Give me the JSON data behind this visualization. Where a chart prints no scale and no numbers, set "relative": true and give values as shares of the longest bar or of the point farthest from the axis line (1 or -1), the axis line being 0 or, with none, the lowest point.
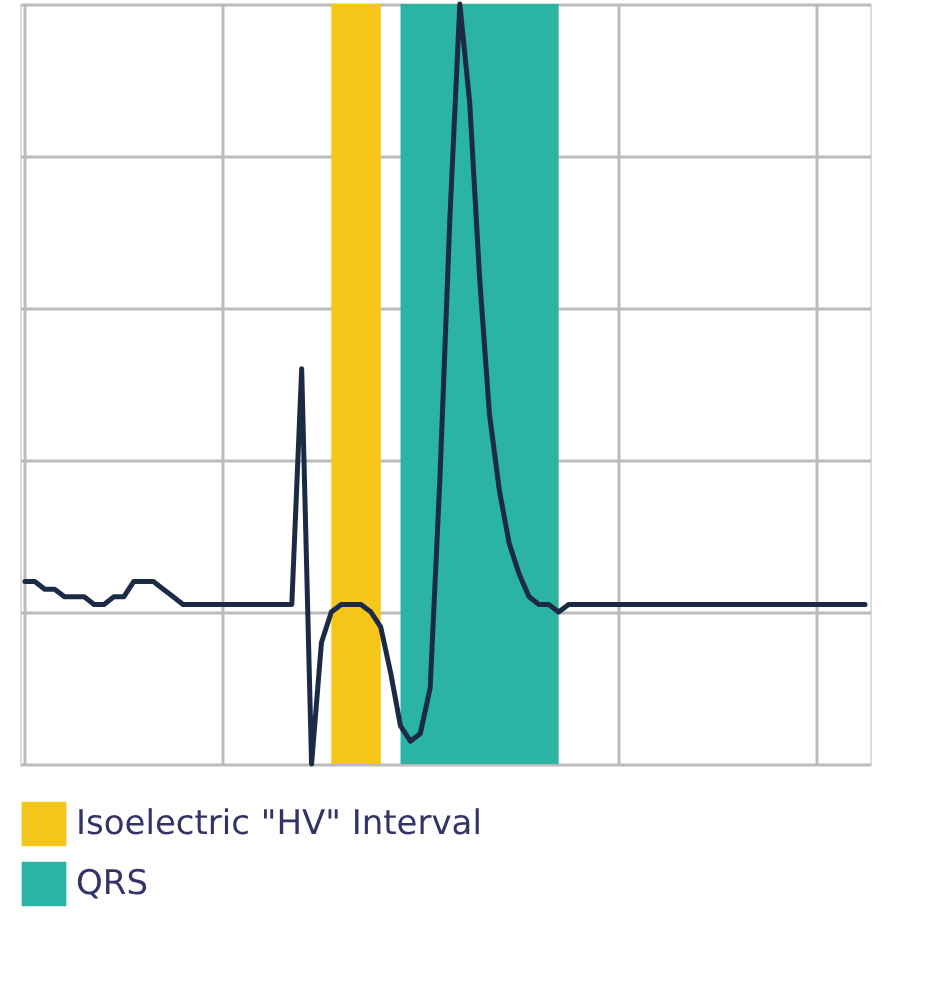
{
  "chart_data": {
    "type": "line",
    "relative": true,
    "tick_labels": false,
    "grid": true,
    "legend": "bottom",
    "marker": "none",
    "line_style": "solid",
    "categories": [
      null,
      null,
      null,
      null,
      null,
      null,
      null,
      null,
      null,
      null,
      null,
      null,
      null,
      null,
      null,
      null,
      null,
      null,
      null,
      null,
      null,
      null,
      null,
      null,
      null,
      null,
      null,
      null,
      null,
      null,
      null,
      null,
      null,
      null,
      null,
      null,
      null,
      null,
      null,
      null,
      null,
      null,
      null,
      null,
      null,
      null,
      null,
      null,
      null,
      null,
      null,
      null,
      null,
      null,
      null,
      null,
      null,
      null,
      null,
      null,
      null,
      null,
      null,
      null,
      null,
      null,
      null,
      null,
      null,
      null,
      null,
      null,
      null,
      null,
      null,
      null,
      null,
      null,
      null,
      null,
      null,
      null,
      null,
      null,
      null,
      null
    ],
    "series": [
      {
        "type": "area",
        "name": "Isoelectric \"HV\" Interval",
        "color": "#f5c518",
        "values": [
          null,
          null,
          null,
          null,
          null,
          null,
          null,
          null,
          null,
          null,
          null,
          null,
          null,
          null,
          null,
          null,
          null,
          null,
          null,
          null,
          null,
          null,
          null,
          null,
          null,
          null,
          null,
          null,
          null,
          null,
          null,
          1,
          1,
          1,
          1,
          1,
          1,
          null,
          null,
          null,
          null,
          null,
          null,
          null,
          null,
          null,
          null,
          null,
          null,
          null,
          null,
          null,
          null,
          null,
          null,
          null,
          null,
          null,
          null,
          null,
          null,
          null,
          null,
          null,
          null,
          null,
          null,
          null,
          null,
          null,
          null,
          null,
          null,
          null,
          null,
          null,
          null,
          null,
          null,
          null,
          null,
          null,
          null,
          null,
          null,
          null
        ]
      },
      {
        "type": "area",
        "name": "QRS",
        "color": "#2bb3a3",
        "values": [
          null,
          null,
          null,
          null,
          null,
          null,
          null,
          null,
          null,
          null,
          null,
          null,
          null,
          null,
          null,
          null,
          null,
          null,
          null,
          null,
          null,
          null,
          null,
          null,
          null,
          null,
          null,
          null,
          null,
          null,
          null,
          null,
          null,
          null,
          null,
          null,
          null,
          null,
          1,
          1,
          1,
          1,
          1,
          1,
          1,
          1,
          1,
          1,
          1,
          1,
          1,
          1,
          1,
          1,
          1,
          null,
          null,
          null,
          null,
          null,
          null,
          null,
          null,
          null,
          null,
          null,
          null,
          null,
          null,
          null,
          null,
          null,
          null,
          null,
          null,
          null,
          null,
          null,
          null,
          null,
          null,
          null,
          null,
          null,
          null,
          null
        ]
      },
      {
        "color": "#1c2b45",
        "values": [
          0.24,
          0.24,
          0.23,
          0.23,
          0.22,
          0.22,
          0.22,
          0.21,
          0.21,
          0.22,
          0.22,
          0.24,
          0.24,
          0.24,
          0.23,
          0.22,
          0.21,
          0.21,
          0.21,
          0.21,
          0.21,
          0.21,
          0.21,
          0.21,
          0.21,
          0.21,
          0.21,
          0.21,
          0.52,
          0,
          0.16,
          0.2,
          0.21,
          0.21,
          0.21,
          0.2,
          0.18,
          0.12,
          0.05,
          0.03,
          0.04,
          0.1,
          0.38,
          0.72,
          1,
          0.87,
          0.64,
          0.46,
          0.36,
          0.29,
          0.25,
          0.22,
          0.21,
          0.21,
          0.2,
          0.21,
          0.21,
          0.21,
          0.21,
          0.21,
          0.21,
          0.21,
          0.21,
          0.21,
          0.21,
          0.21,
          0.21,
          0.21,
          0.21,
          0.21,
          0.21,
          0.21,
          0.21,
          0.21,
          0.21,
          0.21,
          0.21,
          0.21,
          0.21,
          0.21,
          0.21,
          0.21,
          0.21,
          0.21,
          0.21,
          0.21
        ]
      }
    ]
  }
}
